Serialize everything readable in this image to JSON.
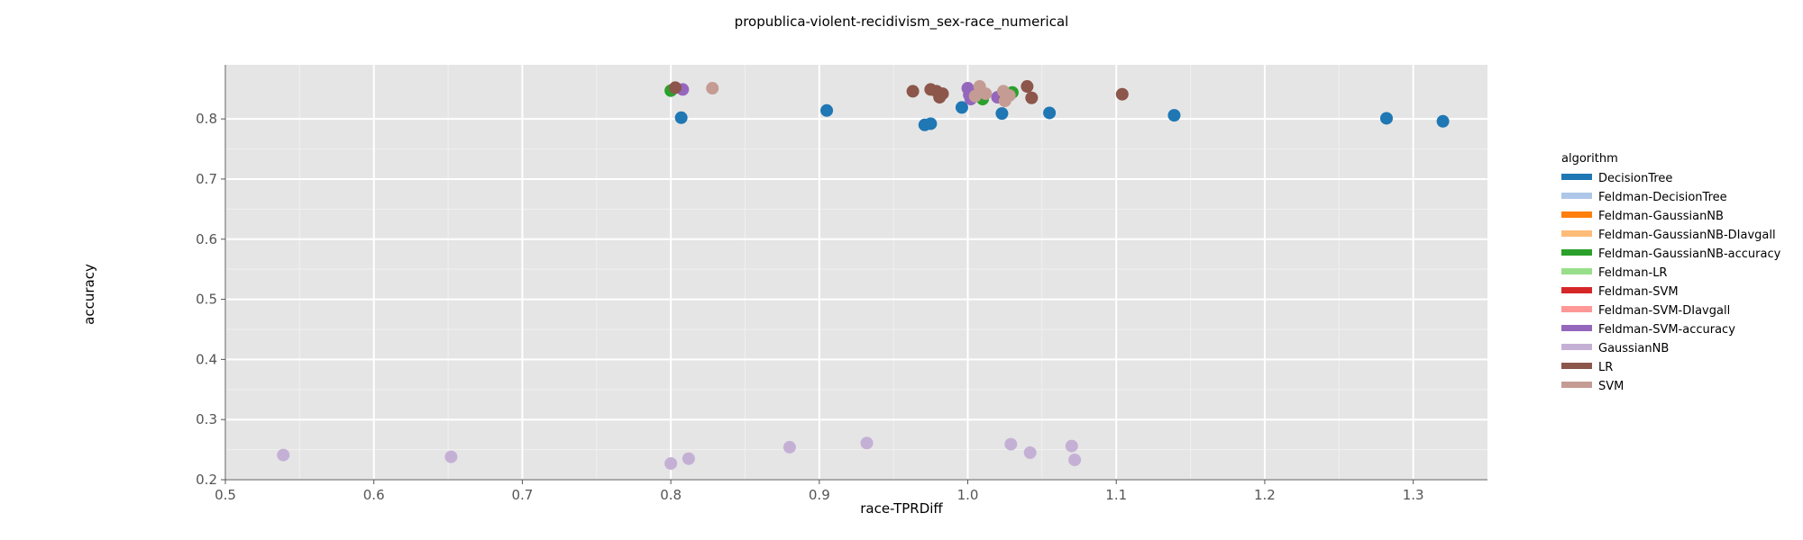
{
  "chart_data": {
    "type": "scatter",
    "title": "propublica-violent-recidivism_sex-race_numerical",
    "xlabel": "race-TPRDiff",
    "ylabel": "accuracy",
    "xlim": [
      0.5,
      1.35
    ],
    "ylim": [
      0.2,
      0.89
    ],
    "x_ticks": [
      "0.5",
      "0.6",
      "0.7",
      "0.8",
      "0.9",
      "1.0",
      "1.1",
      "1.2",
      "1.3"
    ],
    "y_ticks": [
      "0.2",
      "0.3",
      "0.4",
      "0.5",
      "0.6",
      "0.7",
      "0.8"
    ],
    "grid": true,
    "legend_position": "right",
    "legend_title": "algorithm",
    "series": [
      {
        "name": "DecisionTree",
        "color": "#1f77b4",
        "points": [
          [
            0.807,
            0.802
          ],
          [
            0.905,
            0.814
          ],
          [
            0.971,
            0.79
          ],
          [
            0.975,
            0.792
          ],
          [
            0.996,
            0.819
          ],
          [
            1.023,
            0.809
          ],
          [
            1.055,
            0.81
          ],
          [
            1.139,
            0.806
          ],
          [
            1.282,
            0.801
          ],
          [
            1.32,
            0.796
          ]
        ]
      },
      {
        "name": "Feldman-DecisionTree",
        "color": "#aec7e8",
        "points": []
      },
      {
        "name": "Feldman-GaussianNB",
        "color": "#ff7f0e",
        "points": []
      },
      {
        "name": "Feldman-GaussianNB-DIavgall",
        "color": "#ffbb78",
        "points": []
      },
      {
        "name": "Feldman-GaussianNB-accuracy",
        "color": "#2ca02c",
        "points": [
          [
            0.8,
            0.847
          ],
          [
            1.01,
            0.833
          ],
          [
            1.03,
            0.844
          ]
        ]
      },
      {
        "name": "Feldman-LR",
        "color": "#98df8a",
        "points": []
      },
      {
        "name": "Feldman-SVM",
        "color": "#d62728",
        "points": []
      },
      {
        "name": "Feldman-SVM-DIavgall",
        "color": "#ff9896",
        "points": []
      },
      {
        "name": "Feldman-SVM-accuracy",
        "color": "#9467bd",
        "points": [
          [
            0.808,
            0.849
          ],
          [
            1.0,
            0.851
          ],
          [
            1.001,
            0.84
          ],
          [
            1.002,
            0.833
          ],
          [
            1.005,
            0.846
          ],
          [
            1.02,
            0.836
          ]
        ]
      },
      {
        "name": "GaussianNB",
        "color": "#c5b0d5",
        "points": [
          [
            0.539,
            0.241
          ],
          [
            0.652,
            0.238
          ],
          [
            0.8,
            0.227
          ],
          [
            0.812,
            0.235
          ],
          [
            0.88,
            0.254
          ],
          [
            0.932,
            0.261
          ],
          [
            1.029,
            0.259
          ],
          [
            1.042,
            0.245
          ],
          [
            1.07,
            0.256
          ],
          [
            1.072,
            0.233
          ]
        ]
      },
      {
        "name": "LR",
        "color": "#8c564b",
        "points": [
          [
            0.803,
            0.852
          ],
          [
            0.963,
            0.846
          ],
          [
            0.975,
            0.849
          ],
          [
            0.979,
            0.846
          ],
          [
            0.981,
            0.836
          ],
          [
            0.983,
            0.842
          ],
          [
            1.04,
            0.854
          ],
          [
            1.043,
            0.835
          ],
          [
            1.104,
            0.841
          ],
          [
            1.025,
            0.832
          ]
        ]
      },
      {
        "name": "SVM",
        "color": "#c49c94",
        "points": [
          [
            0.828,
            0.851
          ],
          [
            1.005,
            0.838
          ],
          [
            1.008,
            0.854
          ],
          [
            1.012,
            0.842
          ],
          [
            1.024,
            0.846
          ],
          [
            1.025,
            0.83
          ],
          [
            1.028,
            0.839
          ]
        ]
      }
    ]
  }
}
